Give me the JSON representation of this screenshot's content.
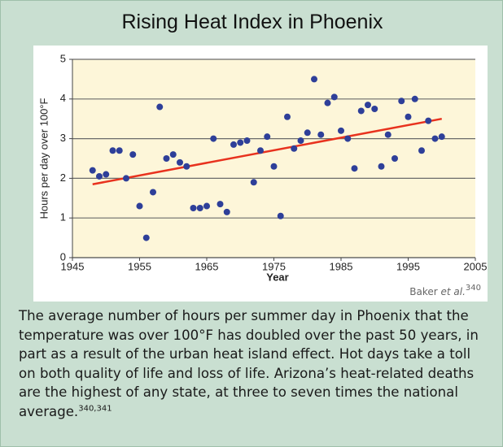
{
  "chart_data": {
    "type": "scatter",
    "title": "Rising Heat Index in Phoenix",
    "x_label": "Year",
    "y_label": "Hours per day over 100°F",
    "x": [
      1948,
      1949,
      1950,
      1951,
      1952,
      1953,
      1954,
      1955,
      1956,
      1957,
      1958,
      1959,
      1960,
      1961,
      1962,
      1963,
      1964,
      1965,
      1966,
      1967,
      1968,
      1969,
      1970,
      1971,
      1972,
      1973,
      1974,
      1975,
      1976,
      1977,
      1978,
      1979,
      1980,
      1981,
      1982,
      1983,
      1984,
      1985,
      1986,
      1987,
      1988,
      1989,
      1990,
      1991,
      1992,
      1993,
      1994,
      1995,
      1996,
      1997,
      1998,
      1999,
      2000
    ],
    "values": [
      2.2,
      2.05,
      2.1,
      2.7,
      2.7,
      2.0,
      2.6,
      1.3,
      0.5,
      1.65,
      3.8,
      2.5,
      2.6,
      2.4,
      2.3,
      1.25,
      1.25,
      1.3,
      3.0,
      1.35,
      1.15,
      2.85,
      2.9,
      2.95,
      1.9,
      2.7,
      3.05,
      2.3,
      1.05,
      3.55,
      2.75,
      2.95,
      3.15,
      4.5,
      3.1,
      3.9,
      4.05,
      3.2,
      3.0,
      2.25,
      3.7,
      3.85,
      3.75,
      2.3,
      3.1,
      2.5,
      3.95,
      3.55,
      4.0,
      2.7,
      3.45,
      3.0,
      3.05
    ],
    "color": "#2e3f99",
    "trend_line": {
      "x": [
        1948,
        2000
      ],
      "values": [
        1.85,
        3.5
      ],
      "color": "#e8321e"
    },
    "xlim": [
      1945,
      2005
    ],
    "xticks": [
      1945,
      1955,
      1965,
      1975,
      1985,
      1995,
      2005
    ],
    "ylim": [
      0,
      5
    ],
    "yticks": [
      0,
      1,
      2,
      3,
      4,
      5
    ],
    "grid": true,
    "source": {
      "text": "Baker",
      "italic": "et al.",
      "ref": "340"
    }
  },
  "caption": {
    "text": "The average number of hours per summer day in Phoenix that the temperature was over 100°F has doubled over the past 50 years, in part as a result of the urban heat island effect. Hot days take a toll on both quality of life and loss of life. Arizona’s heat-related deaths are the highest of any state, at three to seven times the national average.",
    "ref": "340,341"
  }
}
